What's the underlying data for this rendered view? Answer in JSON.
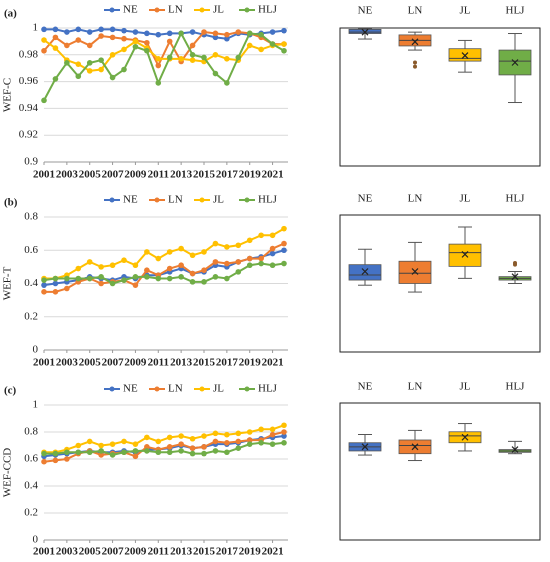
{
  "chart_data": [
    {
      "type": "line",
      "panel_label": "(a)",
      "ylabel": "WEF-C",
      "x": [
        2001,
        2002,
        2003,
        2004,
        2005,
        2006,
        2007,
        2008,
        2009,
        2010,
        2011,
        2012,
        2013,
        2014,
        2015,
        2016,
        2017,
        2018,
        2019,
        2020,
        2021,
        2022
      ],
      "xlim": [
        2001,
        2022
      ],
      "xticks": [
        2001,
        2003,
        2005,
        2007,
        2009,
        2011,
        2013,
        2015,
        2017,
        2019,
        2021
      ],
      "ylim": [
        0.9,
        1
      ],
      "yticks": [
        0.9,
        0.92,
        0.94,
        0.96,
        0.98,
        1
      ],
      "grid": true,
      "series": [
        {
          "name": "NE",
          "color": "#4472c4",
          "values": [
            0.999,
            0.999,
            0.997,
            0.999,
            0.997,
            0.999,
            0.999,
            0.998,
            0.997,
            0.996,
            0.995,
            0.996,
            0.996,
            0.997,
            0.995,
            0.993,
            0.992,
            0.996,
            0.995,
            0.996,
            0.997,
            0.998
          ]
        },
        {
          "name": "LN",
          "color": "#ed7d31",
          "values": [
            0.983,
            0.993,
            0.987,
            0.991,
            0.987,
            0.994,
            0.993,
            0.992,
            0.991,
            0.989,
            0.972,
            0.99,
            0.975,
            0.987,
            0.997,
            0.996,
            0.995,
            0.997,
            0.996,
            0.993,
            0.988,
            0.988
          ]
        },
        {
          "name": "JL",
          "color": "#ffc000",
          "values": [
            0.991,
            0.985,
            0.976,
            0.973,
            0.968,
            0.969,
            0.98,
            0.984,
            0.99,
            0.985,
            0.977,
            0.977,
            0.977,
            0.976,
            0.975,
            0.98,
            0.977,
            0.976,
            0.987,
            0.984,
            0.987,
            0.988
          ]
        },
        {
          "name": "HLJ",
          "color": "#70ad47",
          "values": [
            0.946,
            0.962,
            0.974,
            0.964,
            0.974,
            0.976,
            0.963,
            0.969,
            0.986,
            0.983,
            0.959,
            0.978,
            0.996,
            0.98,
            0.978,
            0.966,
            0.959,
            0.978,
            0.996,
            0.995,
            0.988,
            0.983
          ]
        }
      ]
    },
    {
      "type": "box",
      "categories": [
        "NE",
        "LN",
        "JL",
        "HLJ"
      ],
      "colors": [
        "#4472c4",
        "#ed7d31",
        "#ffc000",
        "#70ad47"
      ],
      "ylim": [
        0.9,
        1
      ],
      "boxes": [
        {
          "min": 0.992,
          "q1": 0.996,
          "median": 0.997,
          "q3": 0.999,
          "max": 0.9995,
          "mean": 0.997
        },
        {
          "min": 0.984,
          "q1": 0.987,
          "median": 0.991,
          "q3": 0.995,
          "max": 0.997,
          "mean": 0.99,
          "outliers": [
            0.972,
            0.975
          ]
        },
        {
          "min": 0.968,
          "q1": 0.976,
          "median": 0.978,
          "q3": 0.985,
          "max": 0.991,
          "mean": 0.98
        },
        {
          "min": 0.946,
          "q1": 0.966,
          "median": 0.976,
          "q3": 0.984,
          "max": 0.996,
          "mean": 0.975
        }
      ]
    },
    {
      "type": "line",
      "panel_label": "(b)",
      "ylabel": "WEF-T",
      "x": [
        2001,
        2002,
        2003,
        2004,
        2005,
        2006,
        2007,
        2008,
        2009,
        2010,
        2011,
        2012,
        2013,
        2014,
        2015,
        2016,
        2017,
        2018,
        2019,
        2020,
        2021,
        2022
      ],
      "xlim": [
        2001,
        2022
      ],
      "xticks": [
        2001,
        2003,
        2005,
        2007,
        2009,
        2011,
        2013,
        2015,
        2017,
        2019,
        2021
      ],
      "ylim": [
        0,
        0.8
      ],
      "yticks": [
        0,
        0.2,
        0.4,
        0.6,
        0.8
      ],
      "grid": true,
      "series": [
        {
          "name": "NE",
          "color": "#4472c4",
          "values": [
            0.39,
            0.4,
            0.41,
            0.42,
            0.44,
            0.43,
            0.42,
            0.44,
            0.43,
            0.45,
            0.45,
            0.47,
            0.49,
            0.46,
            0.47,
            0.51,
            0.5,
            0.53,
            0.55,
            0.56,
            0.58,
            0.6
          ]
        },
        {
          "name": "LN",
          "color": "#ed7d31",
          "values": [
            0.35,
            0.35,
            0.37,
            0.41,
            0.43,
            0.4,
            0.41,
            0.42,
            0.39,
            0.48,
            0.45,
            0.49,
            0.51,
            0.46,
            0.48,
            0.53,
            0.52,
            0.53,
            0.55,
            0.55,
            0.61,
            0.64
          ]
        },
        {
          "name": "JL",
          "color": "#ffc000",
          "values": [
            0.43,
            0.43,
            0.45,
            0.49,
            0.53,
            0.5,
            0.51,
            0.54,
            0.51,
            0.59,
            0.55,
            0.59,
            0.61,
            0.57,
            0.59,
            0.64,
            0.62,
            0.63,
            0.66,
            0.69,
            0.69,
            0.73
          ]
        },
        {
          "name": "HLJ",
          "color": "#70ad47",
          "values": [
            0.42,
            0.43,
            0.43,
            0.43,
            0.43,
            0.44,
            0.4,
            0.42,
            0.44,
            0.44,
            0.43,
            0.43,
            0.44,
            0.41,
            0.41,
            0.44,
            0.43,
            0.47,
            0.51,
            0.52,
            0.51,
            0.52
          ]
        }
      ]
    },
    {
      "type": "box",
      "categories": [
        "NE",
        "LN",
        "JL",
        "HLJ"
      ],
      "colors": [
        "#4472c4",
        "#ed7d31",
        "#ffc000",
        "#70ad47"
      ],
      "ylim": [
        0,
        0.8
      ],
      "boxes": [
        {
          "min": 0.39,
          "q1": 0.42,
          "median": 0.45,
          "q3": 0.51,
          "max": 0.6,
          "mean": 0.47
        },
        {
          "min": 0.35,
          "q1": 0.4,
          "median": 0.46,
          "q3": 0.53,
          "max": 0.64,
          "mean": 0.47
        },
        {
          "min": 0.43,
          "q1": 0.5,
          "median": 0.58,
          "q3": 0.63,
          "max": 0.73,
          "mean": 0.57
        },
        {
          "min": 0.4,
          "q1": 0.42,
          "median": 0.43,
          "q3": 0.44,
          "max": 0.47,
          "mean": 0.44,
          "outliers": [
            0.51,
            0.52
          ]
        }
      ]
    },
    {
      "type": "line",
      "panel_label": "(c)",
      "ylabel": "WEF-CCD",
      "x": [
        2001,
        2002,
        2003,
        2004,
        2005,
        2006,
        2007,
        2008,
        2009,
        2010,
        2011,
        2012,
        2013,
        2014,
        2015,
        2016,
        2017,
        2018,
        2019,
        2020,
        2021,
        2022
      ],
      "xlim": [
        2001,
        2022
      ],
      "xticks": [
        2001,
        2003,
        2005,
        2007,
        2009,
        2011,
        2013,
        2015,
        2017,
        2019,
        2021
      ],
      "ylim": [
        0,
        1
      ],
      "yticks": [
        0,
        0.2,
        0.4,
        0.6,
        0.8,
        1
      ],
      "grid": true,
      "series": [
        {
          "name": "NE",
          "color": "#4472c4",
          "values": [
            0.62,
            0.63,
            0.64,
            0.65,
            0.66,
            0.65,
            0.65,
            0.66,
            0.65,
            0.67,
            0.67,
            0.68,
            0.7,
            0.68,
            0.69,
            0.71,
            0.71,
            0.72,
            0.74,
            0.75,
            0.76,
            0.77
          ]
        },
        {
          "name": "LN",
          "color": "#ed7d31",
          "values": [
            0.58,
            0.59,
            0.6,
            0.64,
            0.66,
            0.63,
            0.64,
            0.65,
            0.62,
            0.69,
            0.67,
            0.69,
            0.71,
            0.68,
            0.69,
            0.73,
            0.72,
            0.73,
            0.74,
            0.74,
            0.78,
            0.8
          ]
        },
        {
          "name": "JL",
          "color": "#ffc000",
          "values": [
            0.65,
            0.65,
            0.67,
            0.7,
            0.73,
            0.7,
            0.71,
            0.73,
            0.71,
            0.76,
            0.73,
            0.76,
            0.77,
            0.75,
            0.77,
            0.79,
            0.78,
            0.79,
            0.8,
            0.82,
            0.82,
            0.85
          ]
        },
        {
          "name": "HLJ",
          "color": "#70ad47",
          "values": [
            0.64,
            0.64,
            0.65,
            0.65,
            0.65,
            0.66,
            0.63,
            0.65,
            0.66,
            0.66,
            0.65,
            0.65,
            0.66,
            0.64,
            0.64,
            0.66,
            0.65,
            0.68,
            0.71,
            0.72,
            0.71,
            0.72
          ]
        }
      ]
    },
    {
      "type": "box",
      "categories": [
        "NE",
        "LN",
        "JL",
        "HLJ"
      ],
      "colors": [
        "#4472c4",
        "#ed7d31",
        "#ffc000",
        "#70ad47"
      ],
      "ylim": [
        0,
        1
      ],
      "boxes": [
        {
          "min": 0.62,
          "q1": 0.65,
          "median": 0.68,
          "q3": 0.71,
          "max": 0.77,
          "mean": 0.68
        },
        {
          "min": 0.58,
          "q1": 0.63,
          "median": 0.69,
          "q3": 0.73,
          "max": 0.8,
          "mean": 0.68
        },
        {
          "min": 0.65,
          "q1": 0.71,
          "median": 0.76,
          "q3": 0.79,
          "max": 0.85,
          "mean": 0.75
        },
        {
          "min": 0.63,
          "q1": 0.64,
          "median": 0.65,
          "q3": 0.66,
          "max": 0.72,
          "mean": 0.66
        }
      ]
    }
  ]
}
